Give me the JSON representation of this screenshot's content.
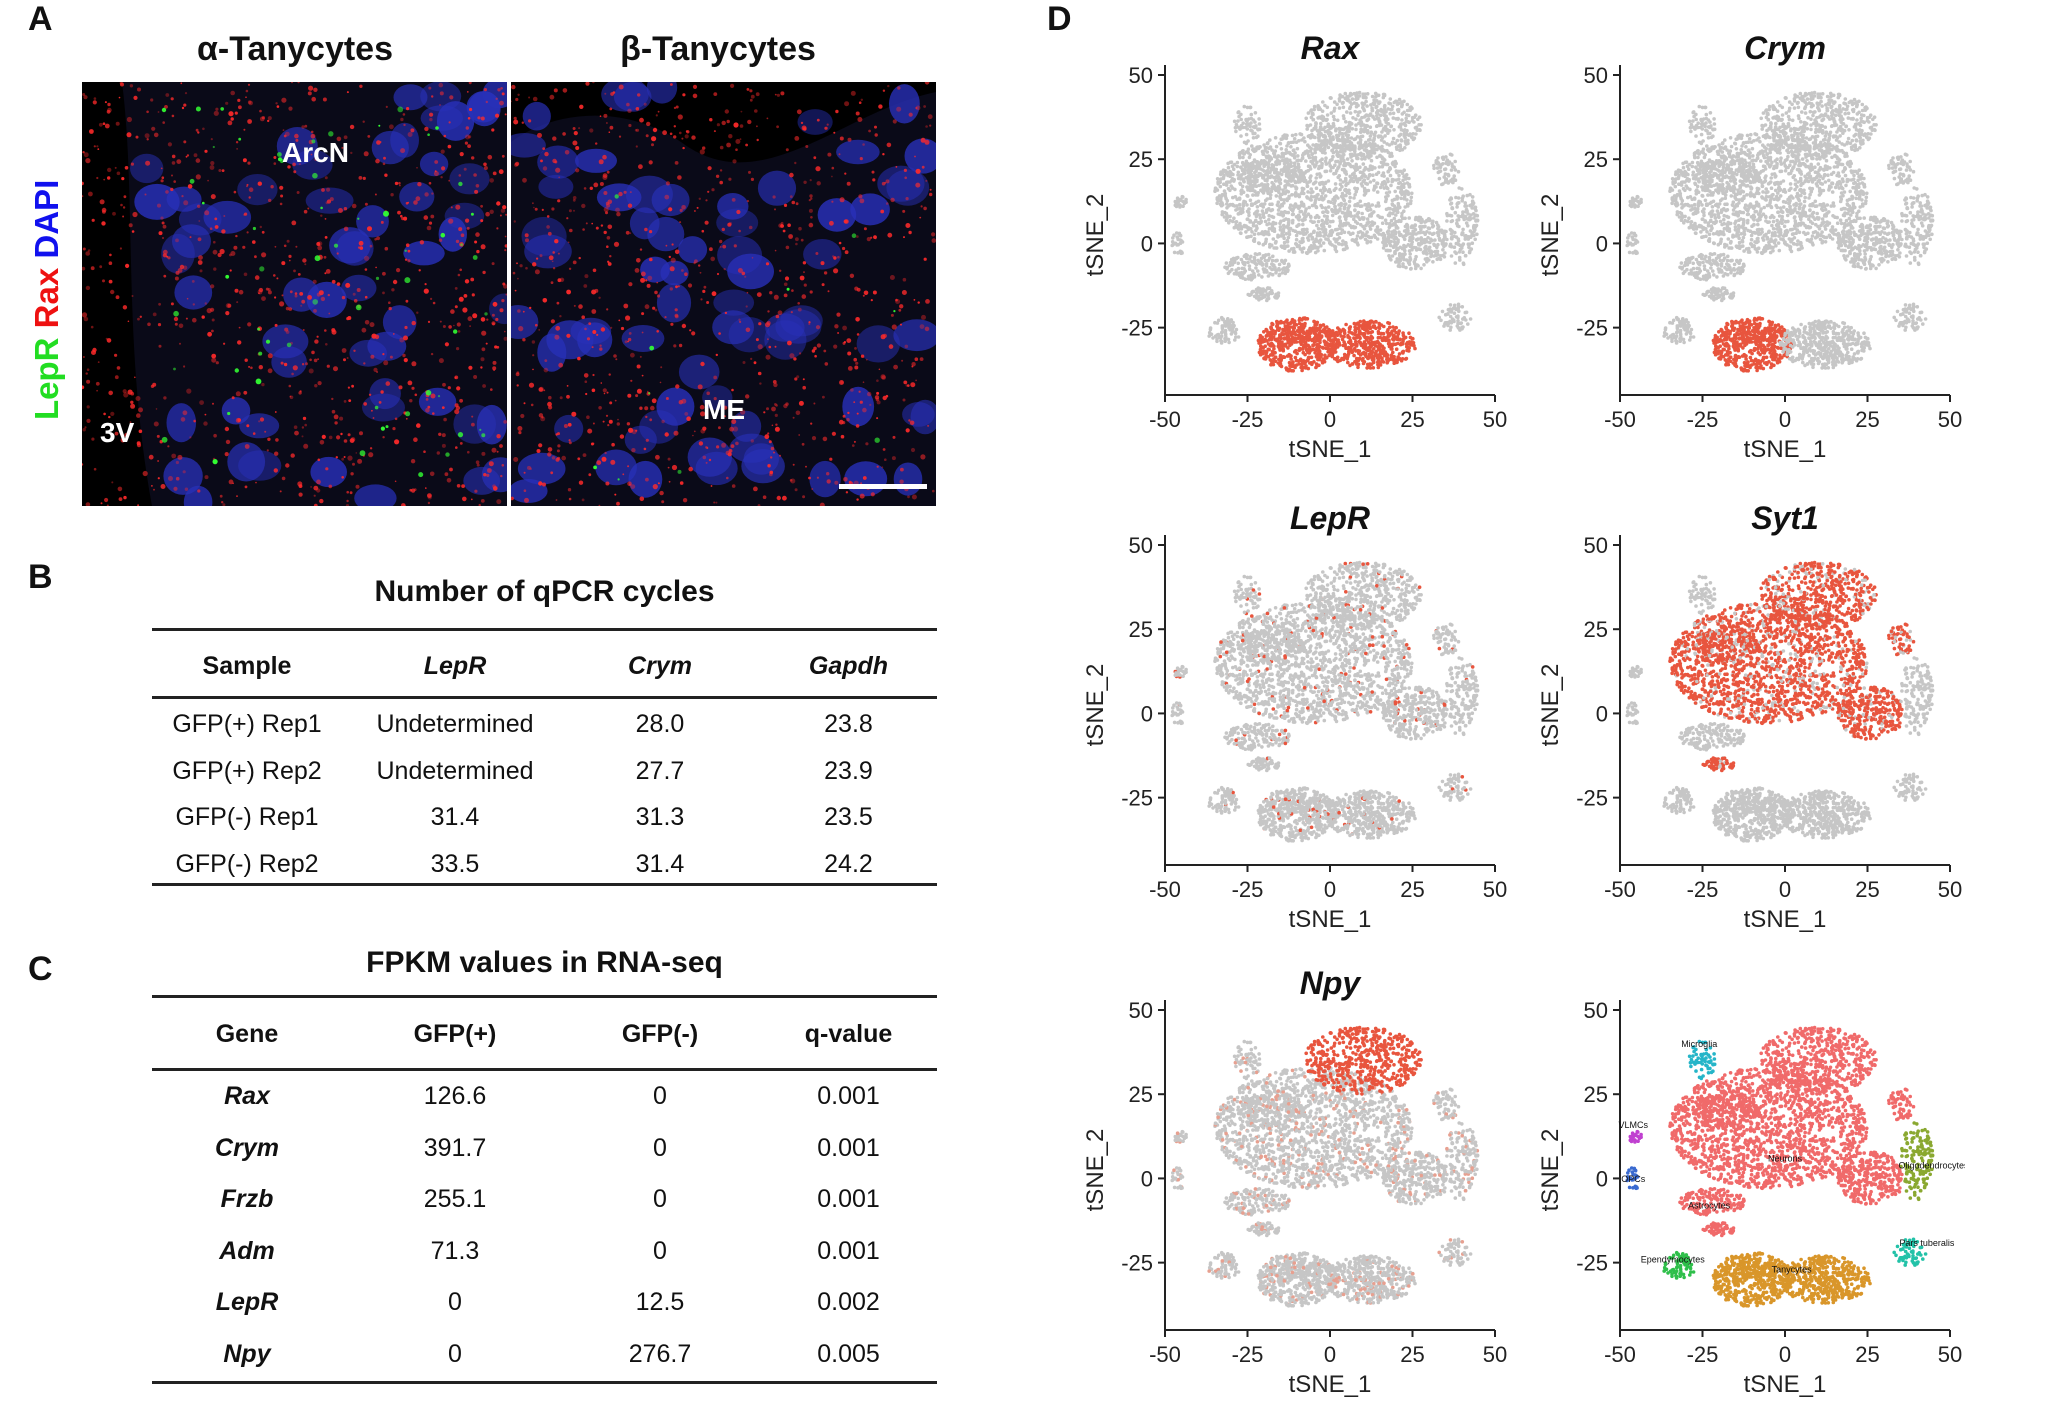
{
  "panel_letters": {
    "a": "A",
    "b": "B",
    "c": "C",
    "d": "D"
  },
  "panel_a": {
    "left_title": "α-Tanycytes",
    "right_title": "β-Tanycytes",
    "labels": {
      "arcn": "ArcN",
      "third_ventricle": "3V",
      "me": "ME"
    },
    "channel_legend": [
      {
        "text": "LepR",
        "color": "#22dd22"
      },
      {
        "text": "Rax",
        "color": "#ee1111"
      },
      {
        "text": "DAPI",
        "color": "#1111ee"
      }
    ]
  },
  "panel_b": {
    "title": "Number of qPCR cycles",
    "headers": [
      "Sample",
      "LepR",
      "Crym",
      "Gapdh"
    ],
    "rows": [
      [
        "GFP(+) Rep1",
        "Undetermined",
        "28.0",
        "23.8"
      ],
      [
        "GFP(+) Rep2",
        "Undetermined",
        "27.7",
        "23.9"
      ],
      [
        "GFP(-) Rep1",
        "31.4",
        "31.3",
        "23.5"
      ],
      [
        "GFP(-) Rep2",
        "33.5",
        "31.4",
        "24.2"
      ]
    ]
  },
  "panel_c": {
    "title": "FPKM values in RNA-seq",
    "headers": [
      "Gene",
      "GFP(+)",
      "GFP(-)",
      "q-value"
    ],
    "rows": [
      [
        "Rax",
        "126.6",
        "0",
        "0.001"
      ],
      [
        "Crym",
        "391.7",
        "0",
        "0.001"
      ],
      [
        "Frzb",
        "255.1",
        "0",
        "0.001"
      ],
      [
        "Adm",
        "71.3",
        "0",
        "0.001"
      ],
      [
        "LepR",
        "0",
        "12.5",
        "0.002"
      ],
      [
        "Npy",
        "0",
        "276.7",
        "0.005"
      ]
    ]
  },
  "chart_data": [
    {
      "type": "scatter",
      "title": "Rax",
      "xlabel": "tSNE_1",
      "ylabel": "tSNE_2",
      "xlim": [
        -50,
        50
      ],
      "ylim": [
        -45,
        50
      ],
      "xticks": [
        -50,
        -25,
        0,
        25,
        50
      ],
      "yticks": [
        -25,
        0,
        25,
        50
      ],
      "highlight": "Tanycytes",
      "color": "#e8553e"
    },
    {
      "type": "scatter",
      "title": "Crym",
      "xlabel": "tSNE_1",
      "ylabel": "tSNE_2",
      "xlim": [
        -50,
        50
      ],
      "ylim": [
        -45,
        50
      ],
      "xticks": [
        -50,
        -25,
        0,
        25,
        50
      ],
      "yticks": [
        -25,
        0,
        25,
        50
      ],
      "highlight": "Tanycytes-left",
      "color": "#e8553e"
    },
    {
      "type": "scatter",
      "title": "LepR",
      "xlabel": "tSNE_1",
      "ylabel": "tSNE_2",
      "xlim": [
        -50,
        50
      ],
      "ylim": [
        -45,
        50
      ],
      "xticks": [
        -50,
        -25,
        0,
        25,
        50
      ],
      "yticks": [
        -25,
        0,
        25,
        50
      ],
      "highlight": "sparse",
      "color": "#e8553e"
    },
    {
      "type": "scatter",
      "title": "Syt1",
      "xlabel": "tSNE_1",
      "ylabel": "tSNE_2",
      "xlim": [
        -50,
        50
      ],
      "ylim": [
        -45,
        50
      ],
      "xticks": [
        -50,
        -25,
        0,
        25,
        50
      ],
      "yticks": [
        -25,
        0,
        25,
        50
      ],
      "highlight": "Neurons",
      "color": "#e8553e"
    },
    {
      "type": "scatter",
      "title": "Npy",
      "xlabel": "tSNE_1",
      "ylabel": "tSNE_2",
      "xlim": [
        -50,
        50
      ],
      "ylim": [
        -45,
        50
      ],
      "xticks": [
        -50,
        -25,
        0,
        25,
        50
      ],
      "yticks": [
        -25,
        0,
        25,
        50
      ],
      "highlight": "Npy-top",
      "color": "#e8553e"
    },
    {
      "type": "scatter",
      "title": "",
      "xlabel": "tSNE_1",
      "ylabel": "tSNE_2",
      "xlim": [
        -50,
        50
      ],
      "ylim": [
        -45,
        50
      ],
      "xticks": [
        -50,
        -25,
        0,
        25,
        50
      ],
      "yticks": [
        -25,
        0,
        25,
        50
      ],
      "highlight": "clusters",
      "clusters": [
        {
          "name": "Neurons",
          "color": "#f06a6a"
        },
        {
          "name": "Tanycytes",
          "color": "#d9962a"
        },
        {
          "name": "Astrocytes",
          "color": "#f06a6a"
        },
        {
          "name": "Ependymocytes",
          "color": "#2fbf4a"
        },
        {
          "name": "Oligodendrocytes",
          "color": "#8aa830"
        },
        {
          "name": "Microglia",
          "color": "#25b5c8"
        },
        {
          "name": "VLMCs",
          "color": "#c040d0"
        },
        {
          "name": "OPCs",
          "color": "#3a6ad0"
        },
        {
          "name": "Pars tuberalis",
          "color": "#22c2a8"
        }
      ]
    }
  ]
}
